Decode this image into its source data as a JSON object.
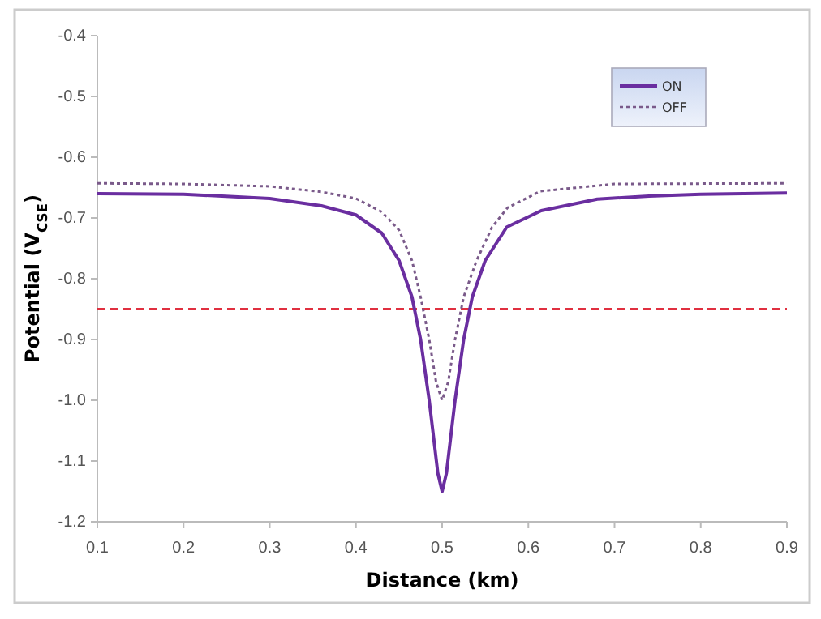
{
  "chart_data": {
    "type": "line",
    "xlabel": "Distance (km)",
    "ylabel": "Potential (V$_{CSE}$)",
    "xlim": [
      0.1,
      0.9
    ],
    "xticks": [
      {
        "value": 0.1,
        "label": "0.1"
      },
      {
        "value": 0.2,
        "label": "0.2"
      },
      {
        "value": 0.3,
        "label": "0.3"
      },
      {
        "value": 0.4,
        "label": "0.4"
      },
      {
        "value": 0.5,
        "label": "0.5"
      },
      {
        "value": 0.6,
        "label": "0.6"
      },
      {
        "value": 0.7,
        "label": "0.7"
      },
      {
        "value": 0.8,
        "label": "0.8"
      },
      {
        "value": 0.9,
        "label": "0.9"
      }
    ],
    "ylim": [
      -1.2,
      -0.4
    ],
    "yticks": [
      {
        "value": -1.2,
        "label": "-1.2"
      },
      {
        "value": -1.1,
        "label": "-1.1"
      },
      {
        "value": -1.0,
        "label": "-1.0"
      },
      {
        "value": -0.9,
        "label": "-0.9"
      },
      {
        "value": -0.8,
        "label": "-0.8"
      },
      {
        "value": -0.7,
        "label": "-0.7"
      },
      {
        "value": -0.6,
        "label": "-0.6"
      },
      {
        "value": -0.5,
        "label": "-0.5"
      },
      {
        "value": -0.4,
        "label": "-0.4"
      }
    ],
    "grid": false,
    "legend": "top right",
    "marker": "none",
    "series": [
      {
        "name": "ON",
        "color": "#6a2ea0",
        "line_style": "solid",
        "x": [
          0.1,
          0.2,
          0.3,
          0.36,
          0.4,
          0.43,
          0.45,
          0.465,
          0.475,
          0.485,
          0.495,
          0.5,
          0.505,
          0.515,
          0.525,
          0.535,
          0.55,
          0.575,
          0.615,
          0.68,
          0.74,
          0.8,
          0.9
        ],
        "values": [
          -0.66,
          -0.661,
          -0.668,
          -0.68,
          -0.695,
          -0.725,
          -0.77,
          -0.83,
          -0.9,
          -1.0,
          -1.12,
          -1.15,
          -1.12,
          -1.0,
          -0.9,
          -0.83,
          -0.77,
          -0.715,
          -0.688,
          -0.669,
          -0.664,
          -0.661,
          -0.659
        ]
      },
      {
        "name": "OFF",
        "color": "#7a5a8a",
        "line_style": "dotted",
        "x": [
          0.1,
          0.2,
          0.3,
          0.36,
          0.4,
          0.43,
          0.45,
          0.465,
          0.475,
          0.485,
          0.493,
          0.5,
          0.507,
          0.515,
          0.525,
          0.54,
          0.558,
          0.576,
          0.614,
          0.7,
          0.9
        ],
        "values": [
          -0.643,
          -0.644,
          -0.648,
          -0.657,
          -0.668,
          -0.69,
          -0.72,
          -0.77,
          -0.83,
          -0.9,
          -0.97,
          -1.0,
          -0.97,
          -0.9,
          -0.83,
          -0.77,
          -0.715,
          -0.683,
          -0.656,
          -0.644,
          -0.643
        ]
      }
    ],
    "ref_lines": [
      {
        "axis": "y",
        "value": -0.85,
        "color": "#e03040",
        "line_style": "dashed"
      }
    ]
  }
}
